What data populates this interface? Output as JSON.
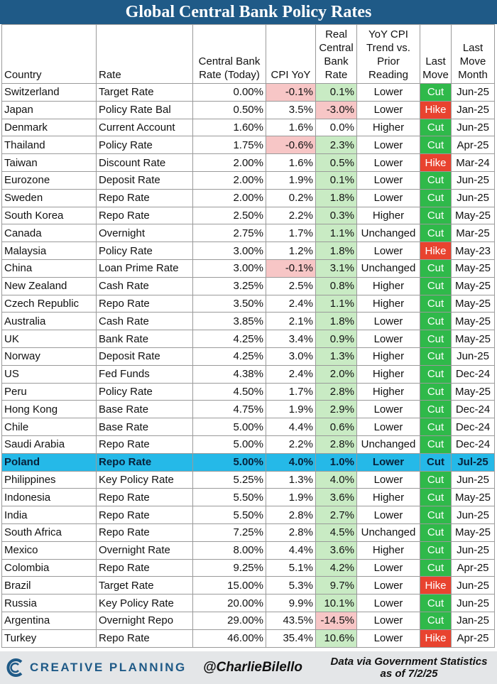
{
  "title": "Global Central Bank Policy Rates",
  "headers": {
    "country": "Country",
    "rate": "Rate",
    "cb_rate": [
      "Central Bank",
      "Rate (Today)"
    ],
    "cpi": "CPI YoY",
    "real": [
      "Real",
      "Central",
      "Bank",
      "Rate"
    ],
    "trend": [
      "YoY CPI",
      "Trend vs.",
      "Prior",
      "Reading"
    ],
    "last_move": [
      "Last",
      "Move"
    ],
    "last_month": [
      "Last",
      "Move",
      "Month"
    ]
  },
  "rows": [
    {
      "country": "Switzerland",
      "rate": "Target Rate",
      "cb": "0.00%",
      "cpi": "-0.1%",
      "real": "0.1%",
      "trend": "Lower",
      "move": "Cut",
      "month": "Jun-25"
    },
    {
      "country": "Japan",
      "rate": "Policy Rate Bal",
      "cb": "0.50%",
      "cpi": "3.5%",
      "real": "-3.0%",
      "trend": "Lower",
      "move": "Hike",
      "month": "Jan-25"
    },
    {
      "country": "Denmark",
      "rate": "Current Account",
      "cb": "1.60%",
      "cpi": "1.6%",
      "real": "0.0%",
      "trend": "Higher",
      "move": "Cut",
      "month": "Jun-25"
    },
    {
      "country": "Thailand",
      "rate": "Policy Rate",
      "cb": "1.75%",
      "cpi": "-0.6%",
      "real": "2.3%",
      "trend": "Lower",
      "move": "Cut",
      "month": "Apr-25"
    },
    {
      "country": "Taiwan",
      "rate": "Discount Rate",
      "cb": "2.00%",
      "cpi": "1.6%",
      "real": "0.5%",
      "trend": "Lower",
      "move": "Hike",
      "month": "Mar-24"
    },
    {
      "country": "Eurozone",
      "rate": "Deposit Rate",
      "cb": "2.00%",
      "cpi": "1.9%",
      "real": "0.1%",
      "trend": "Lower",
      "move": "Cut",
      "month": "Jun-25"
    },
    {
      "country": "Sweden",
      "rate": "Repo Rate",
      "cb": "2.00%",
      "cpi": "0.2%",
      "real": "1.8%",
      "trend": "Lower",
      "move": "Cut",
      "month": "Jun-25"
    },
    {
      "country": "South Korea",
      "rate": "Repo Rate",
      "cb": "2.50%",
      "cpi": "2.2%",
      "real": "0.3%",
      "trend": "Higher",
      "move": "Cut",
      "month": "May-25"
    },
    {
      "country": "Canada",
      "rate": "Overnight",
      "cb": "2.75%",
      "cpi": "1.7%",
      "real": "1.1%",
      "trend": "Unchanged",
      "move": "Cut",
      "month": "Mar-25"
    },
    {
      "country": "Malaysia",
      "rate": "Policy Rate",
      "cb": "3.00%",
      "cpi": "1.2%",
      "real": "1.8%",
      "trend": "Lower",
      "move": "Hike",
      "month": "May-23"
    },
    {
      "country": "China",
      "rate": "Loan Prime Rate",
      "cb": "3.00%",
      "cpi": "-0.1%",
      "real": "3.1%",
      "trend": "Unchanged",
      "move": "Cut",
      "month": "May-25"
    },
    {
      "country": "New Zealand",
      "rate": "Cash Rate",
      "cb": "3.25%",
      "cpi": "2.5%",
      "real": "0.8%",
      "trend": "Higher",
      "move": "Cut",
      "month": "May-25"
    },
    {
      "country": "Czech Republic",
      "rate": "Repo Rate",
      "cb": "3.50%",
      "cpi": "2.4%",
      "real": "1.1%",
      "trend": "Higher",
      "move": "Cut",
      "month": "May-25"
    },
    {
      "country": "Australia",
      "rate": "Cash Rate",
      "cb": "3.85%",
      "cpi": "2.1%",
      "real": "1.8%",
      "trend": "Lower",
      "move": "Cut",
      "month": "May-25"
    },
    {
      "country": "UK",
      "rate": "Bank Rate",
      "cb": "4.25%",
      "cpi": "3.4%",
      "real": "0.9%",
      "trend": "Lower",
      "move": "Cut",
      "month": "May-25"
    },
    {
      "country": "Norway",
      "rate": "Deposit Rate",
      "cb": "4.25%",
      "cpi": "3.0%",
      "real": "1.3%",
      "trend": "Higher",
      "move": "Cut",
      "month": "Jun-25"
    },
    {
      "country": "US",
      "rate": "Fed Funds",
      "cb": "4.38%",
      "cpi": "2.4%",
      "real": "2.0%",
      "trend": "Higher",
      "move": "Cut",
      "month": "Dec-24"
    },
    {
      "country": "Peru",
      "rate": "Policy Rate",
      "cb": "4.50%",
      "cpi": "1.7%",
      "real": "2.8%",
      "trend": "Higher",
      "move": "Cut",
      "month": "May-25"
    },
    {
      "country": "Hong Kong",
      "rate": "Base Rate",
      "cb": "4.75%",
      "cpi": "1.9%",
      "real": "2.9%",
      "trend": "Lower",
      "move": "Cut",
      "month": "Dec-24"
    },
    {
      "country": "Chile",
      "rate": "Base Rate",
      "cb": "5.00%",
      "cpi": "4.4%",
      "real": "0.6%",
      "trend": "Lower",
      "move": "Cut",
      "month": "Dec-24"
    },
    {
      "country": "Saudi Arabia",
      "rate": "Repo Rate",
      "cb": "5.00%",
      "cpi": "2.2%",
      "real": "2.8%",
      "trend": "Unchanged",
      "move": "Cut",
      "month": "Dec-24"
    },
    {
      "country": "Poland",
      "rate": "Repo Rate",
      "cb": "5.00%",
      "cpi": "4.0%",
      "real": "1.0%",
      "trend": "Lower",
      "move": "Cut",
      "month": "Jul-25",
      "highlight": true
    },
    {
      "country": "Philippines",
      "rate": "Key Policy Rate",
      "cb": "5.25%",
      "cpi": "1.3%",
      "real": "4.0%",
      "trend": "Lower",
      "move": "Cut",
      "month": "Jun-25"
    },
    {
      "country": "Indonesia",
      "rate": "Repo Rate",
      "cb": "5.50%",
      "cpi": "1.9%",
      "real": "3.6%",
      "trend": "Higher",
      "move": "Cut",
      "month": "May-25"
    },
    {
      "country": "India",
      "rate": "Repo Rate",
      "cb": "5.50%",
      "cpi": "2.8%",
      "real": "2.7%",
      "trend": "Lower",
      "move": "Cut",
      "month": "Jun-25"
    },
    {
      "country": "South Africa",
      "rate": "Repo Rate",
      "cb": "7.25%",
      "cpi": "2.8%",
      "real": "4.5%",
      "trend": "Unchanged",
      "move": "Cut",
      "month": "May-25"
    },
    {
      "country": "Mexico",
      "rate": "Overnight Rate",
      "cb": "8.00%",
      "cpi": "4.4%",
      "real": "3.6%",
      "trend": "Higher",
      "move": "Cut",
      "month": "Jun-25"
    },
    {
      "country": "Colombia",
      "rate": "Repo Rate",
      "cb": "9.25%",
      "cpi": "5.1%",
      "real": "4.2%",
      "trend": "Lower",
      "move": "Cut",
      "month": "Apr-25"
    },
    {
      "country": "Brazil",
      "rate": "Target Rate",
      "cb": "15.00%",
      "cpi": "5.3%",
      "real": "9.7%",
      "trend": "Lower",
      "move": "Hike",
      "month": "Jun-25"
    },
    {
      "country": "Russia",
      "rate": "Key Policy Rate",
      "cb": "20.00%",
      "cpi": "9.9%",
      "real": "10.1%",
      "trend": "Lower",
      "move": "Cut",
      "month": "Jun-25"
    },
    {
      "country": "Argentina",
      "rate": "Overnight Repo",
      "cb": "29.00%",
      "cpi": "43.5%",
      "real": "-14.5%",
      "trend": "Lower",
      "move": "Cut",
      "month": "Jan-25"
    },
    {
      "country": "Turkey",
      "rate": "Repo Rate",
      "cb": "46.00%",
      "cpi": "35.4%",
      "real": "10.6%",
      "trend": "Lower",
      "move": "Hike",
      "month": "Apr-25"
    }
  ],
  "colors": {
    "title_bg": "#1f5a87",
    "negative_bg": "#f7c6c6",
    "positive_bg": "#c9ebc4",
    "cut": "#2fb94a",
    "hike": "#e8432f",
    "highlight": "#25b9e8"
  },
  "footer": {
    "brand": "CREATIVE PLANNING",
    "brand_icon": "creative-planning-logo-icon",
    "handle": "@CharlieBilello",
    "source_line1": "Data via Government Statistics",
    "source_line2": "as of 7/2/25"
  }
}
